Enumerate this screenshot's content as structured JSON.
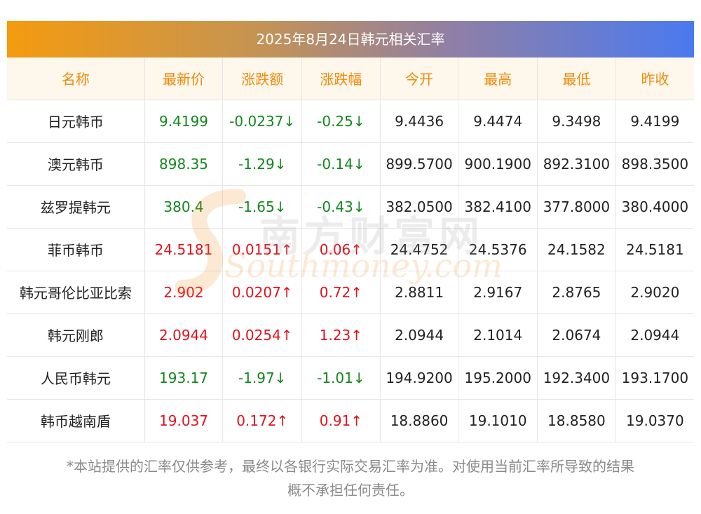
{
  "title": "2025年8月24日韩元相关汇率",
  "headers": [
    "名称",
    "最新价",
    "涨跌额",
    "涨跌幅",
    "今开",
    "最高",
    "最低",
    "昨收"
  ],
  "colors": {
    "up": "#e0121b",
    "down": "#13871b",
    "header_text": "#f28a0a"
  },
  "rows": [
    {
      "name": "日元韩币",
      "latest": "9.4199",
      "change": "-0.0237↓",
      "pct": "-0.25↓",
      "open": "9.4436",
      "high": "9.4474",
      "low": "9.3498",
      "prev": "9.4199",
      "dir": "down"
    },
    {
      "name": "澳元韩币",
      "latest": "898.35",
      "change": "-1.29↓",
      "pct": "-0.14↓",
      "open": "899.5700",
      "high": "900.1900",
      "low": "892.3100",
      "prev": "898.3500",
      "dir": "down"
    },
    {
      "name": "兹罗提韩元",
      "latest": "380.4",
      "change": "-1.65↓",
      "pct": "-0.43↓",
      "open": "382.0500",
      "high": "382.4100",
      "low": "377.8000",
      "prev": "380.4000",
      "dir": "down"
    },
    {
      "name": "菲币韩币",
      "latest": "24.5181",
      "change": "0.0151↑",
      "pct": "0.06↑",
      "open": "24.4752",
      "high": "24.5376",
      "low": "24.1582",
      "prev": "24.5181",
      "dir": "up"
    },
    {
      "name": "韩元哥伦比亚比索",
      "latest": "2.902",
      "change": "0.0207↑",
      "pct": "0.72↑",
      "open": "2.8811",
      "high": "2.9167",
      "low": "2.8765",
      "prev": "2.9020",
      "dir": "up"
    },
    {
      "name": "韩元刚郎",
      "latest": "2.0944",
      "change": "0.0254↑",
      "pct": "1.23↑",
      "open": "2.0944",
      "high": "2.1014",
      "low": "2.0674",
      "prev": "2.0944",
      "dir": "up"
    },
    {
      "name": "人民币韩元",
      "latest": "193.17",
      "change": "-1.97↓",
      "pct": "-1.01↓",
      "open": "194.9200",
      "high": "195.2000",
      "low": "192.3400",
      "prev": "193.1700",
      "dir": "down"
    },
    {
      "name": "韩币越南盾",
      "latest": "19.037",
      "change": "0.172↑",
      "pct": "0.91↑",
      "open": "18.8860",
      "high": "19.1010",
      "low": "18.8580",
      "prev": "19.0370",
      "dir": "up"
    }
  ],
  "watermark": {
    "cn": "南方财富网",
    "en": "Southmoney.com"
  },
  "footnote": {
    "line1": "*本站提供的汇率仅供参考，最终以各银行实际交易汇率为准。对使用当前汇率所导致的结果",
    "line2": "概不承担任何责任。"
  }
}
